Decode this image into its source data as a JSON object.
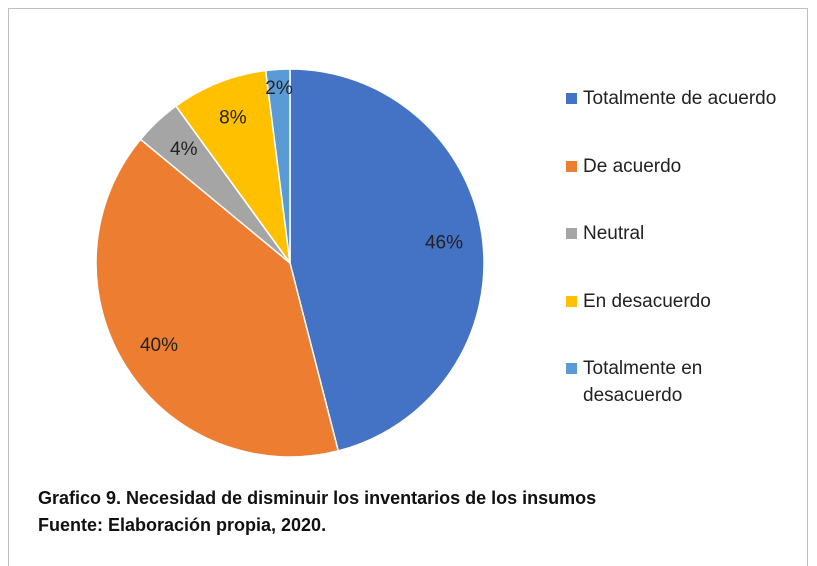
{
  "chart_data": {
    "type": "pie",
    "title": "Grafico 9. Necesidad de disminuir los inventarios de los insumos",
    "subtitle": "Fuente: Elaboración propia, 2020.",
    "categories": [
      "Totalmente de acuerdo",
      "De acuerdo",
      "Neutral",
      "En desacuerdo",
      "Totalmente en desacuerdo"
    ],
    "values": [
      46,
      40,
      4,
      8,
      2
    ],
    "value_labels": [
      "46%",
      "40%",
      "4%",
      "8%",
      "2%"
    ],
    "colors": [
      "#4472c4",
      "#ed7d31",
      "#a5a5a5",
      "#ffc000",
      "#5b9bd5"
    ],
    "legend": "right"
  }
}
